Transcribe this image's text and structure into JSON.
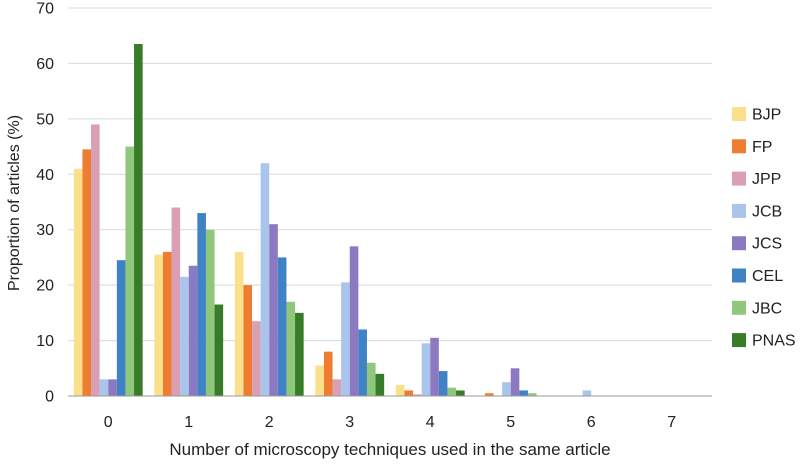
{
  "chart_data": {
    "type": "bar",
    "title": "",
    "xlabel": "Number of microscopy techniques used in the same article",
    "ylabel": "Proportion of articles (%)",
    "ylim": [
      0,
      70
    ],
    "yticks": [
      "0",
      "10",
      "20",
      "30",
      "40",
      "50",
      "60",
      "70"
    ],
    "categories": [
      "0",
      "1",
      "2",
      "3",
      "4",
      "5",
      "6",
      "7"
    ],
    "grid": true,
    "legend_position": "right",
    "series": [
      {
        "name": "BJP",
        "color": "#fbe08c",
        "values": [
          41,
          25.5,
          26,
          5.5,
          2,
          0,
          0,
          0
        ]
      },
      {
        "name": "FP",
        "color": "#ee7d31",
        "values": [
          44.5,
          26,
          20,
          8,
          1,
          0.5,
          0,
          0
        ]
      },
      {
        "name": "JPP",
        "color": "#d9a0b5",
        "values": [
          49,
          34,
          13.5,
          3,
          0.3,
          0,
          0,
          0
        ]
      },
      {
        "name": "JCB",
        "color": "#a9c5ec",
        "values": [
          3,
          21.5,
          42,
          20.5,
          9.5,
          2.5,
          1,
          0
        ]
      },
      {
        "name": "JCS",
        "color": "#8c79c1",
        "values": [
          3,
          23.5,
          31,
          27,
          10.5,
          5,
          0,
          0
        ]
      },
      {
        "name": "CEL",
        "color": "#3f82c5",
        "values": [
          24.5,
          33,
          25,
          12,
          4.5,
          1,
          0,
          0
        ]
      },
      {
        "name": "JBC",
        "color": "#8fc77c",
        "values": [
          45,
          30,
          17,
          6,
          1.5,
          0.5,
          0,
          0
        ]
      },
      {
        "name": "PNAS",
        "color": "#387b28",
        "values": [
          63.5,
          16.5,
          15,
          4,
          1,
          0,
          0,
          0
        ]
      }
    ]
  }
}
